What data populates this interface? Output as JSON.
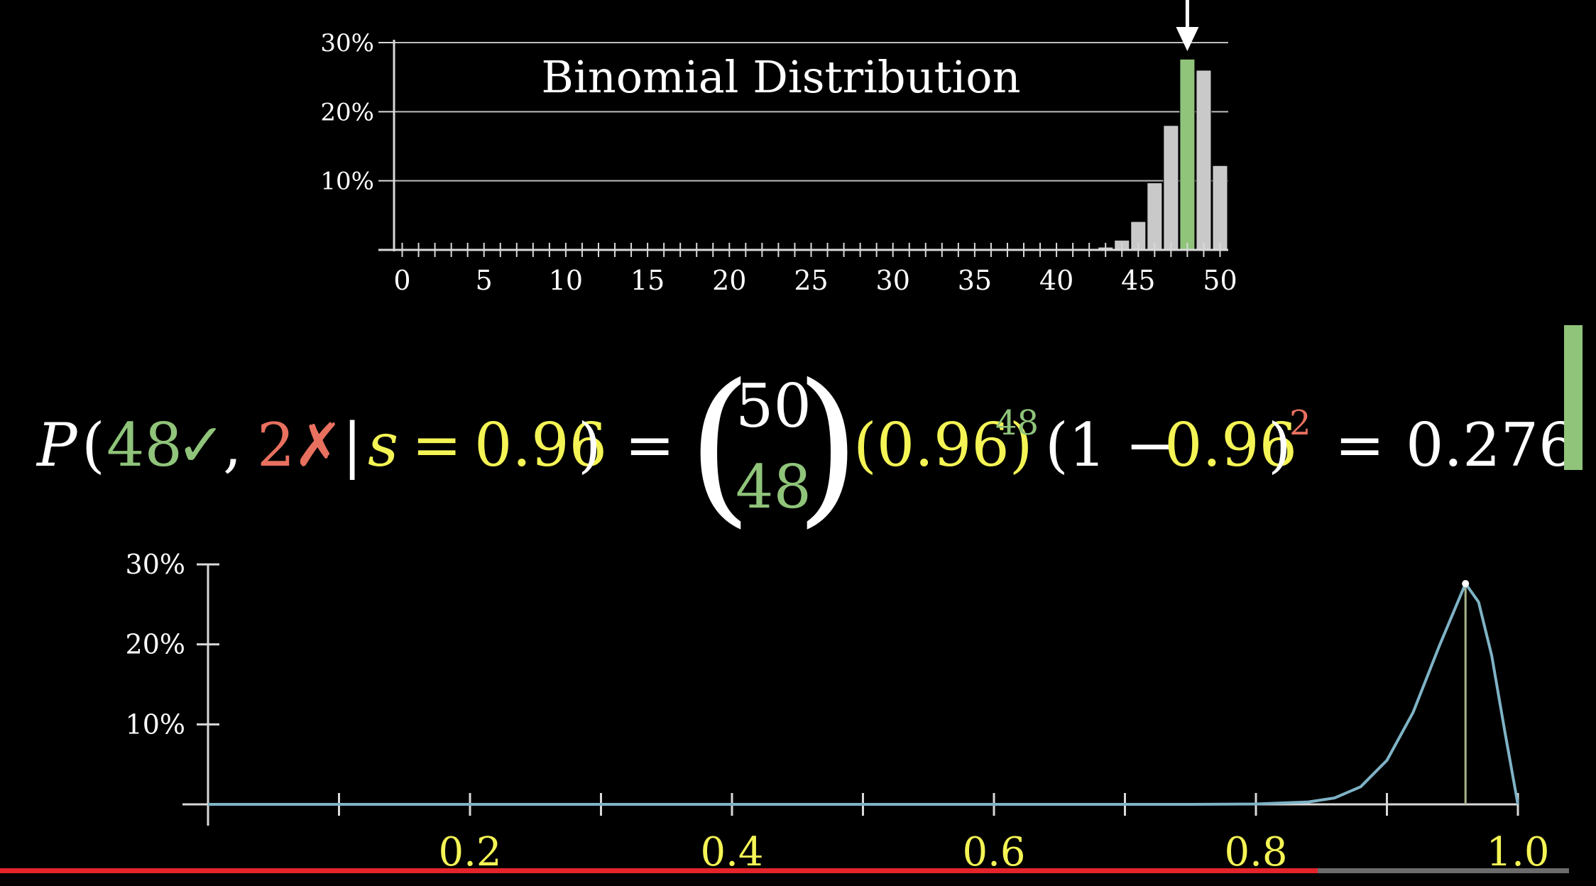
{
  "colors": {
    "green": "#8fc47a",
    "red": "#e8705f",
    "yellow": "#f4f455",
    "bar_gray": "#c9c9c9",
    "curve": "#7fb3c6",
    "axis": "#d9d9d9"
  },
  "formula": {
    "p": "P",
    "open": "(",
    "k": "48",
    "check": "✓",
    "comma": ",",
    "n_fail": "2",
    "cross": "✗",
    "bar": "|",
    "s_var": "s",
    "eq": "=",
    "s_val": "0.96",
    "close": ")",
    "eq2": "=",
    "binom_top": "50",
    "binom_bottom": "48",
    "base1": "(0.96)",
    "exp1": "48",
    "base2_open": "(1 − ",
    "base2_val": "0.96",
    "base2_close": ")",
    "exp2": "2",
    "eq3": "=",
    "result": "0.276"
  },
  "chart_data": [
    {
      "type": "bar",
      "title": "Binomial Distribution",
      "x": [
        0,
        1,
        2,
        3,
        4,
        5,
        6,
        7,
        8,
        9,
        10,
        11,
        12,
        13,
        14,
        15,
        16,
        17,
        18,
        19,
        20,
        21,
        22,
        23,
        24,
        25,
        26,
        27,
        28,
        29,
        30,
        31,
        32,
        33,
        34,
        35,
        36,
        37,
        38,
        39,
        40,
        41,
        42,
        43,
        44,
        45,
        46,
        47,
        48,
        49,
        50
      ],
      "values": [
        0,
        0,
        0,
        0,
        0,
        0,
        0,
        0,
        0,
        0,
        0,
        0,
        0,
        0,
        0,
        0,
        0,
        0,
        0,
        0,
        0,
        0,
        0,
        0,
        0,
        0,
        0,
        0,
        0,
        0,
        0,
        0,
        0,
        0,
        0,
        0,
        0,
        0,
        0,
        0,
        0,
        0,
        0,
        0.004,
        0.014,
        0.041,
        0.097,
        0.18,
        0.276,
        0.26,
        0.122
      ],
      "highlight_x": 48,
      "highlight_color": "#8fc47a",
      "marker": "down-arrow above x=48",
      "x_tick_labels": [
        "0",
        "5",
        "10",
        "15",
        "20",
        "25",
        "30",
        "35",
        "40",
        "45",
        "50"
      ],
      "y_tick_labels": [
        "10%",
        "20%",
        "30%"
      ],
      "ylim": [
        0,
        0.3
      ],
      "grid": true
    },
    {
      "type": "line",
      "x": [
        0,
        0.7,
        0.75,
        0.8,
        0.84,
        0.86,
        0.88,
        0.9,
        0.92,
        0.94,
        0.96,
        0.97,
        0.98,
        0.99,
        1.0
      ],
      "y": [
        0,
        0,
        3e-05,
        0.0004,
        0.003,
        0.008,
        0.022,
        0.055,
        0.115,
        0.198,
        0.276,
        0.253,
        0.186,
        0.091,
        0
      ],
      "highlight_x": 0.96,
      "x_tick_labels": [
        "0.2",
        "0.4",
        "0.6",
        "0.8",
        "1.0"
      ],
      "y_tick_labels": [
        "10%",
        "20%",
        "30%"
      ],
      "ylim": [
        0,
        0.3
      ],
      "xlim": [
        0,
        1.0
      ],
      "grid": false
    }
  ],
  "video": {
    "progress": 0.84
  }
}
